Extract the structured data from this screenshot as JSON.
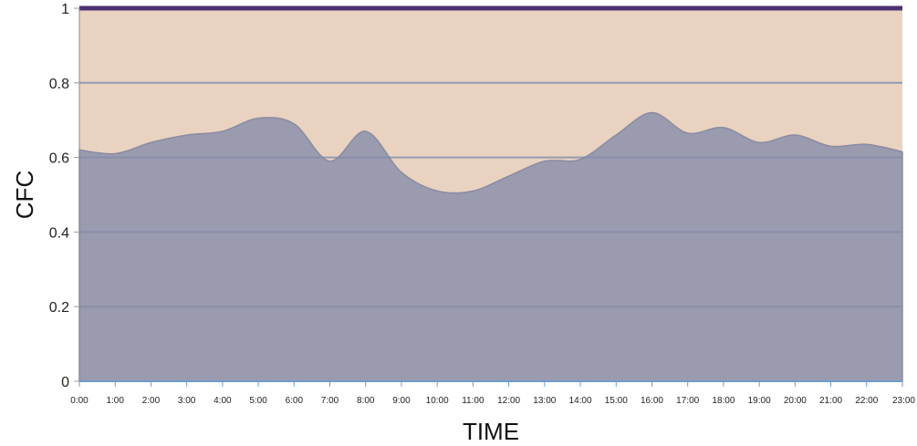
{
  "chart_data": {
    "type": "area",
    "xlabel": "TIME",
    "ylabel": "CFC",
    "ylim": [
      0,
      1
    ],
    "yticks": [
      "0",
      "0.2",
      "0.4",
      "0.6",
      "0.8",
      "1"
    ],
    "categories": [
      "0:00",
      "1:00",
      "2:00",
      "3:00",
      "4:00",
      "5:00",
      "6:00",
      "7:00",
      "8:00",
      "9:00",
      "10:00",
      "11:00",
      "12:00",
      "13:00",
      "14:00",
      "15:00",
      "16:00",
      "17:00",
      "18:00",
      "19:00",
      "20:00",
      "21:00",
      "22:00",
      "23:00"
    ],
    "series": [
      {
        "values": [
          0.62,
          0.61,
          0.64,
          0.66,
          0.67,
          0.705,
          0.69,
          0.59,
          0.67,
          0.56,
          0.51,
          0.51,
          0.55,
          0.59,
          0.595,
          0.66,
          0.72,
          0.665,
          0.68,
          0.64,
          0.66,
          0.63,
          0.635,
          0.615
        ]
      }
    ],
    "grid": true,
    "colors": {
      "area_fill": "#9a9bae",
      "area_stroke": "#8a8ba2",
      "background_fill": "#e9d2c0",
      "top_line": "#4a3272",
      "grid": "#b8b8bc",
      "axis": "#6f9ccc"
    }
  }
}
